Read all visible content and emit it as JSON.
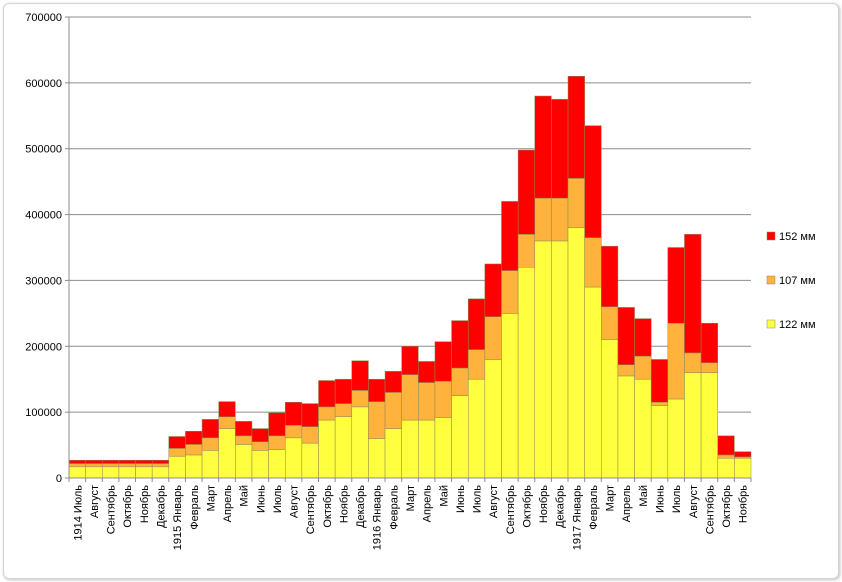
{
  "chart_data": {
    "type": "bar",
    "stacked": true,
    "categories": [
      "1914 Июль",
      "Август",
      "Сентябрь",
      "Октябрь",
      "Ноябрь",
      "Декабрь",
      "1915 Январь",
      "Февраль",
      "Март",
      "Апрель",
      "Май",
      "Июнь",
      "Июль",
      "Август",
      "Сентябрь",
      "Октябрь",
      "Ноябрь",
      "Декабрь",
      "1916 Январь",
      "Февраль",
      "Март",
      "Апрель",
      "Май",
      "Июнь",
      "Июль",
      "Август",
      "Сентябрь",
      "Октябрь",
      "Ноябрь",
      "Декабрь",
      "1917 Январь",
      "Февраль",
      "Март",
      "Апрель",
      "Май",
      "Июнь",
      "Июль",
      "Август",
      "Сентябрь",
      "Октябрь",
      "Ноябрь"
    ],
    "series": [
      {
        "name": "122 мм",
        "color": "#ffff40",
        "values": [
          17000,
          17000,
          17000,
          17000,
          17000,
          17000,
          33000,
          35000,
          42000,
          75000,
          51000,
          42000,
          43000,
          61000,
          53000,
          88000,
          93000,
          108000,
          60000,
          75000,
          88000,
          88000,
          92000,
          125000,
          150000,
          180000,
          250000,
          320000,
          360000,
          360000,
          380000,
          290000,
          210000,
          155000,
          150000,
          110000,
          120000,
          160000,
          160000,
          30000,
          30000
        ]
      },
      {
        "name": "107 мм",
        "color": "#ffb33c",
        "values": [
          5000,
          5000,
          5000,
          5000,
          5000,
          5000,
          12000,
          16000,
          19000,
          18000,
          13000,
          13000,
          21000,
          19000,
          25000,
          20000,
          20000,
          25000,
          56000,
          55000,
          69000,
          57000,
          55000,
          42000,
          45000,
          65000,
          65000,
          50000,
          65000,
          65000,
          75000,
          75000,
          50000,
          17000,
          35000,
          5000,
          115000,
          30000,
          15000,
          5000,
          2000
        ]
      },
      {
        "name": "152 мм",
        "color": "#ff0000",
        "values": [
          5000,
          5000,
          5000,
          5000,
          5000,
          5000,
          18000,
          20000,
          28000,
          23000,
          22000,
          20000,
          35000,
          35000,
          35000,
          40000,
          37000,
          45000,
          34000,
          32000,
          43000,
          32000,
          60000,
          72000,
          77000,
          80000,
          105000,
          128000,
          155000,
          150000,
          155000,
          170000,
          92000,
          87000,
          57000,
          65000,
          115000,
          180000,
          60000,
          29000,
          8000
        ]
      }
    ],
    "legend": [
      "152 мм",
      "107 мм",
      "122 мм"
    ],
    "legend_position": "right",
    "ylim": [
      0,
      700000
    ],
    "yticks": [
      "0",
      "100000",
      "200000",
      "300000",
      "400000",
      "500000",
      "600000",
      "700000"
    ],
    "title": "",
    "xlabel": "",
    "ylabel": "",
    "grid": "horizontal"
  }
}
